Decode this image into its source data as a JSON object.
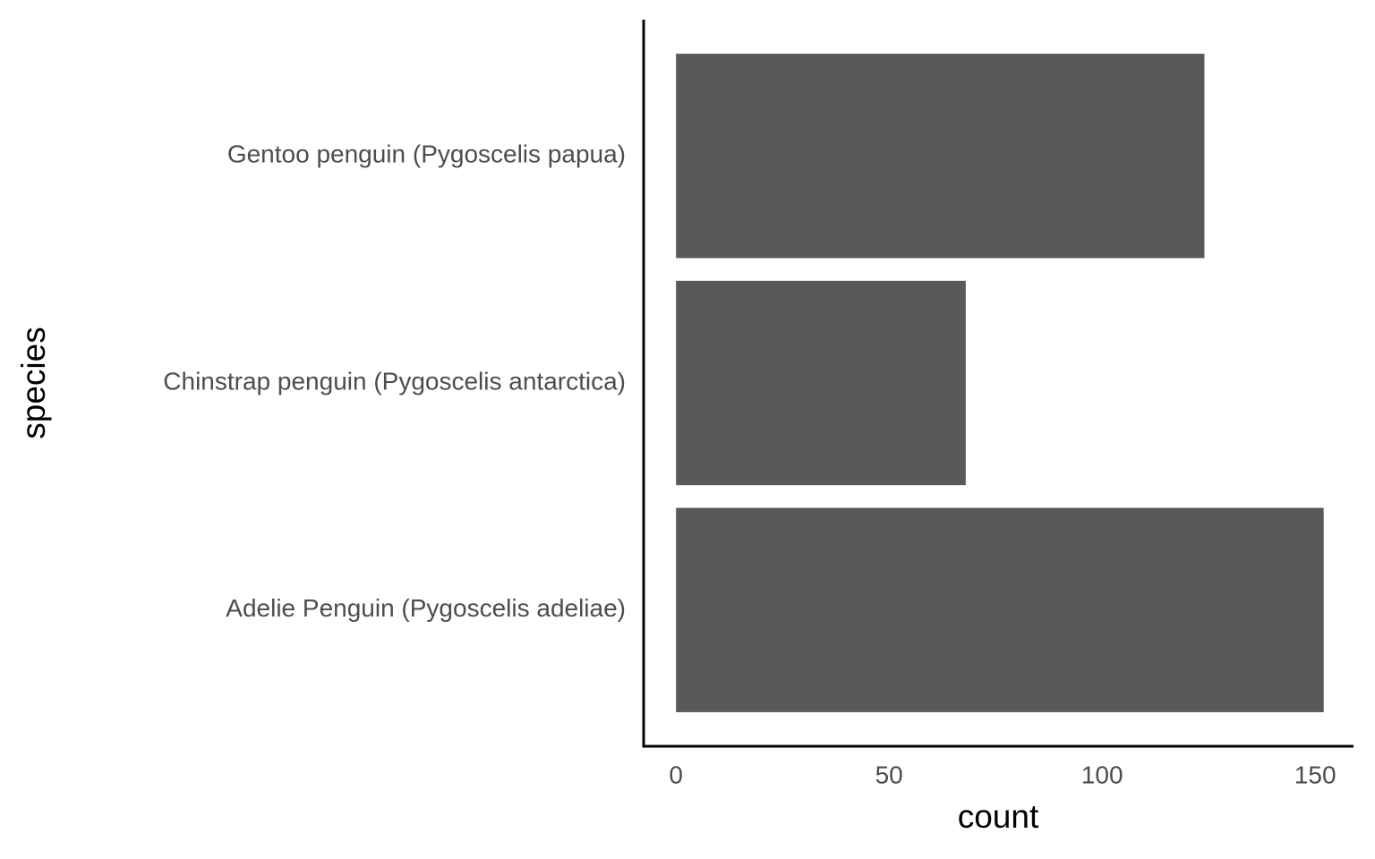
{
  "chart_data": {
    "type": "bar",
    "orientation": "horizontal",
    "categories": [
      "Adelie Penguin (Pygoscelis adeliae)",
      "Chinstrap penguin (Pygoscelis antarctica)",
      "Gentoo penguin (Pygoscelis papua)"
    ],
    "values": [
      152,
      68,
      124
    ],
    "color": "#595959",
    "x_label": "count",
    "y_label": "species",
    "xlim": [
      -7.6,
      159.0
    ],
    "xticks": [
      0,
      50,
      100,
      150
    ],
    "grid": false
  }
}
